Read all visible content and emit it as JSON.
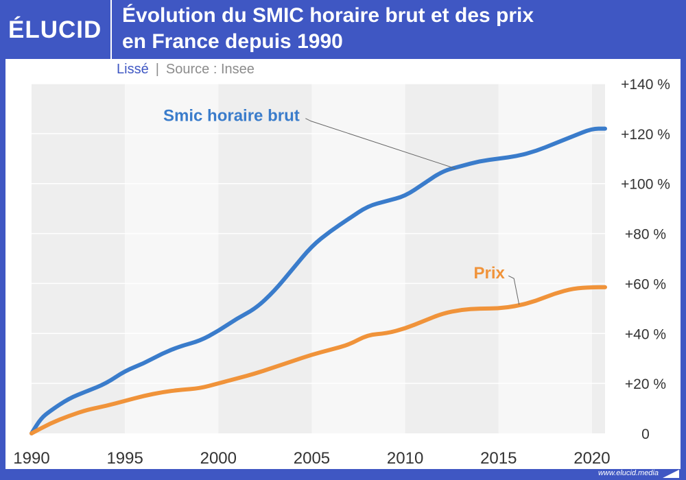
{
  "brand": {
    "logo": "ÉLUCID",
    "footer_url": "www.elucid.media"
  },
  "colors": {
    "header_bg": "#3f57c3",
    "smic": "#3a7ccb",
    "prix": "#f0933a",
    "band_dark": "#eeeeee",
    "band_light": "#f7f7f7"
  },
  "header": {
    "title_line1": "Évolution du SMIC horaire brut et des prix",
    "title_line2": "en France depuis 1990",
    "smoothed_label": "Lissé",
    "separator": "|",
    "source": "Source : Insee"
  },
  "chart_data": {
    "type": "line",
    "title": "Évolution du SMIC horaire brut et des prix en France depuis 1990",
    "xlabel": "",
    "ylabel": "",
    "xlim": [
      1990,
      2020.7
    ],
    "ylim": [
      0,
      140
    ],
    "x_ticks": [
      1990,
      1995,
      2000,
      2005,
      2010,
      2015,
      2020
    ],
    "y_ticks": [
      0,
      20,
      40,
      60,
      80,
      100,
      120,
      140
    ],
    "y_tick_labels": [
      "0",
      "+20 %",
      "+40 %",
      "+60 %",
      "+80 %",
      "+100 %",
      "+120 %",
      "+140 %"
    ],
    "grid": true,
    "legend": "direct labels",
    "series": [
      {
        "name": "Smic horaire brut",
        "label_year": 2000.7,
        "label_value": 125,
        "x": [
          1990,
          1990.5,
          1991,
          1992,
          1993,
          1994,
          1995,
          1996,
          1997,
          1998,
          1999,
          2000,
          2001,
          2002,
          2003,
          2004,
          2005,
          2006,
          2007,
          2008,
          2009,
          2010,
          2011,
          2012,
          2013,
          2014,
          2015,
          2016,
          2017,
          2018,
          2019,
          2020,
          2020.7
        ],
        "values": [
          0,
          6,
          9,
          14,
          17,
          20,
          25,
          28,
          32,
          35,
          37,
          41,
          46,
          50,
          57,
          66,
          75,
          81,
          86,
          91,
          93,
          95,
          100,
          105,
          107,
          109,
          110,
          111,
          113,
          116,
          119,
          122,
          122
        ]
      },
      {
        "name": "Prix",
        "label_year": 2014.5,
        "label_value": 62,
        "x": [
          1990,
          1991,
          1992,
          1993,
          1994,
          1995,
          1996,
          1997,
          1998,
          1999,
          2000,
          2001,
          2002,
          2003,
          2004,
          2005,
          2006,
          2007,
          2008,
          2009,
          2010,
          2011,
          2012,
          2013,
          2014,
          2015,
          2016,
          2017,
          2018,
          2019,
          2020,
          2020.7
        ],
        "values": [
          0,
          4,
          7,
          9.5,
          11,
          13,
          15,
          16.5,
          17.5,
          18,
          20,
          22,
          24,
          26.5,
          29,
          31.5,
          33.5,
          35.5,
          39.5,
          40,
          42,
          45,
          48,
          49.5,
          50,
          50,
          51,
          53,
          56,
          58,
          58.5,
          58.5
        ]
      }
    ]
  }
}
